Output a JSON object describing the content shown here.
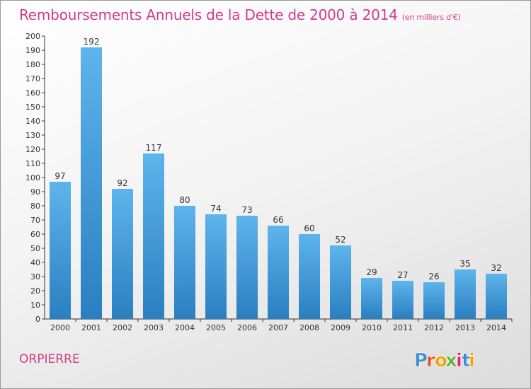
{
  "title": {
    "main": "Remboursements Annuels de la Dette de 2000 à 2014",
    "unit": "(en milliers d'€)"
  },
  "commune": "ORPIERRE",
  "logo": {
    "text": "Proxiti",
    "colors": [
      "#3b8ed6",
      "#e94e1b",
      "#f2a200",
      "#5fb130",
      "#e2227d",
      "#3b8ed6",
      "#f2a200"
    ]
  },
  "colors": {
    "title": "#d23c84",
    "bar_top": "#5eb4ec",
    "bar_bottom": "#2a7fc0",
    "axis": "#333333"
  },
  "chart_data": {
    "type": "bar",
    "title": "Remboursements Annuels de la Dette de 2000 à 2014",
    "categories": [
      "2000",
      "2001",
      "2002",
      "2003",
      "2004",
      "2005",
      "2006",
      "2007",
      "2008",
      "2009",
      "2010",
      "2011",
      "2012",
      "2013",
      "2014"
    ],
    "values": [
      97,
      192,
      92,
      117,
      80,
      74,
      73,
      66,
      60,
      52,
      29,
      27,
      26,
      35,
      32
    ],
    "ylim": [
      0,
      200
    ],
    "yticks": [
      0,
      10,
      20,
      30,
      40,
      50,
      60,
      70,
      80,
      90,
      100,
      110,
      120,
      130,
      140,
      150,
      160,
      170,
      180,
      190,
      200
    ],
    "grid": false,
    "data_labels": true
  }
}
